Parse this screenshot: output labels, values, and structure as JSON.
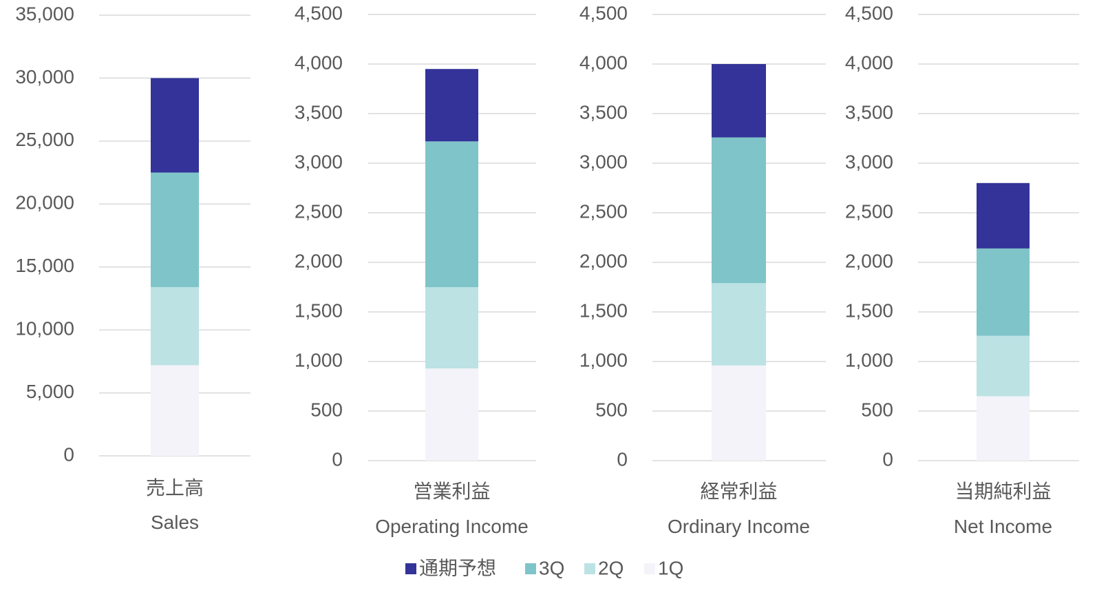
{
  "chart_data": [
    {
      "type": "bar",
      "stacked": true,
      "grid": true,
      "categories": [
        "売上高 Sales"
      ],
      "series": [
        {
          "values": [
            7500
          ]
        },
        {
          "values": [
            9100
          ]
        },
        {
          "values": [
            6200
          ]
        },
        {
          "values": [
            7200
          ]
        }
      ],
      "ylim": [
        0,
        35000
      ],
      "yticks": [
        0,
        {
          "value": 5000,
          "label": "5,000"
        },
        {
          "value": 10000,
          "label": "10,000"
        },
        {
          "value": 15000,
          "label": "15,000"
        },
        {
          "value": 20000,
          "label": "20,000"
        },
        {
          "value": 25000,
          "label": "25,000"
        },
        {
          "value": 30000,
          "label": "30,000"
        },
        {
          "value": 35000,
          "label": "35,000"
        }
      ]
    },
    {
      "type": "bar",
      "stacked": true,
      "grid": true,
      "categories": [
        "営業利益 Operating Income"
      ],
      "series": [
        {
          "values": [
            730
          ]
        },
        {
          "values": [
            1470
          ]
        },
        {
          "values": [
            820
          ]
        },
        {
          "values": [
            930
          ]
        }
      ],
      "ylim": [
        0,
        4500
      ],
      "yticks": [
        0,
        500,
        {
          "value": 1000,
          "label": "1,000"
        },
        {
          "value": 1500,
          "label": "1,500"
        },
        {
          "value": 2000,
          "label": "2,000"
        },
        {
          "value": 2500,
          "label": "2,500"
        },
        {
          "value": 3000,
          "label": "3,000"
        },
        {
          "value": 3500,
          "label": "3,500"
        },
        {
          "value": 4000,
          "label": "4,000"
        },
        {
          "value": 4500,
          "label": "4,500"
        }
      ]
    },
    {
      "type": "bar",
      "stacked": true,
      "grid": true,
      "categories": [
        "経常利益 Ordinary Income"
      ],
      "series": [
        {
          "values": [
            740
          ]
        },
        {
          "values": [
            1470
          ]
        },
        {
          "values": [
            830
          ]
        },
        {
          "values": [
            960
          ]
        }
      ],
      "ylim": [
        0,
        4500
      ],
      "yticks": [
        0,
        500,
        {
          "value": 1000,
          "label": "1,000"
        },
        {
          "value": 1500,
          "label": "1,500"
        },
        {
          "value": 2000,
          "label": "2,000"
        },
        {
          "value": 2500,
          "label": "2,500"
        },
        {
          "value": 3000,
          "label": "3,000"
        },
        {
          "value": 3500,
          "label": "3,500"
        },
        {
          "value": 4000,
          "label": "4,000"
        },
        {
          "value": 4500,
          "label": "4,500"
        }
      ]
    },
    {
      "type": "bar",
      "stacked": true,
      "grid": true,
      "categories": [
        "当期純利益 Net Income"
      ],
      "series": [
        {
          "values": [
            660
          ]
        },
        {
          "values": [
            880
          ]
        },
        {
          "values": [
            610
          ]
        },
        {
          "values": [
            650
          ]
        }
      ],
      "ylim": [
        0,
        4500
      ],
      "yticks": [
        0,
        500,
        {
          "value": 1000,
          "label": "1,000"
        },
        {
          "value": 1500,
          "label": "1,500"
        },
        {
          "value": 2000,
          "label": "2,000"
        },
        {
          "value": 2500,
          "label": "2,500"
        },
        {
          "value": 3000,
          "label": "3,000"
        },
        {
          "value": 3500,
          "label": "3,500"
        },
        {
          "value": 4000,
          "label": "4,000"
        },
        {
          "value": 4500,
          "label": "4,500"
        }
      ]
    }
  ],
  "legend": {
    "position": "bottom",
    "series": [
      {
        "name": "通期予想",
        "color": "#333399"
      },
      {
        "name": "3Q",
        "color": "#7fc4c8"
      },
      {
        "name": "2Q",
        "color": "#bce2e4"
      },
      {
        "name": "1Q",
        "color": "#f3f3f9"
      }
    ]
  }
}
